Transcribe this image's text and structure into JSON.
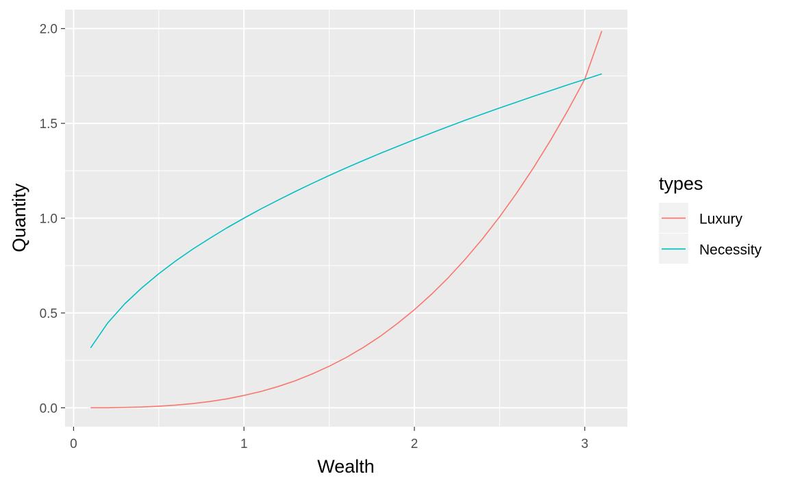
{
  "chart_data": {
    "type": "line",
    "title": "",
    "xlabel": "Wealth",
    "ylabel": "Quantity",
    "xlim": [
      -0.05,
      3.25
    ],
    "ylim": [
      -0.1,
      2.1
    ],
    "x_ticks": [
      0,
      1,
      2,
      3
    ],
    "y_ticks": [
      0.0,
      0.5,
      1.0,
      1.5,
      2.0
    ],
    "x_tick_labels": [
      "0",
      "1",
      "2",
      "3"
    ],
    "y_tick_labels": [
      "0.0",
      "0.5",
      "1.0",
      "1.5",
      "2.0"
    ],
    "grid": true,
    "legend": {
      "title": "types",
      "position": "right"
    },
    "series": [
      {
        "name": "Luxury",
        "color": "#F8766D",
        "x": [
          0.1,
          0.2,
          0.3,
          0.4,
          0.5,
          0.6,
          0.7,
          0.8,
          0.9,
          1.0,
          1.1,
          1.2,
          1.3,
          1.4,
          1.5,
          1.6,
          1.7,
          1.8,
          1.9,
          2.0,
          2.1,
          2.2,
          2.3,
          2.4,
          2.5,
          2.6,
          2.7,
          2.8,
          2.9,
          3.0,
          3.1
        ],
        "y": [
          0.0,
          0.0,
          0.002,
          0.004,
          0.008,
          0.014,
          0.022,
          0.033,
          0.047,
          0.065,
          0.086,
          0.112,
          0.142,
          0.178,
          0.219,
          0.265,
          0.318,
          0.377,
          0.444,
          0.517,
          0.598,
          0.687,
          0.785,
          0.891,
          1.007,
          1.132,
          1.267,
          1.412,
          1.567,
          1.733,
          1.987
        ]
      },
      {
        "name": "Necessity",
        "color": "#00BFC4",
        "x": [
          0.1,
          0.2,
          0.3,
          0.4,
          0.5,
          0.6,
          0.7,
          0.8,
          0.9,
          1.0,
          1.1,
          1.2,
          1.3,
          1.4,
          1.5,
          1.6,
          1.7,
          1.8,
          1.9,
          2.0,
          2.1,
          2.2,
          2.3,
          2.4,
          2.5,
          2.6,
          2.7,
          2.8,
          2.9,
          3.0,
          3.1
        ],
        "y": [
          0.316,
          0.447,
          0.548,
          0.632,
          0.707,
          0.775,
          0.837,
          0.894,
          0.949,
          1.0,
          1.049,
          1.095,
          1.14,
          1.183,
          1.225,
          1.265,
          1.304,
          1.342,
          1.378,
          1.414,
          1.449,
          1.483,
          1.517,
          1.549,
          1.581,
          1.612,
          1.643,
          1.673,
          1.703,
          1.732,
          1.761
        ]
      }
    ]
  }
}
